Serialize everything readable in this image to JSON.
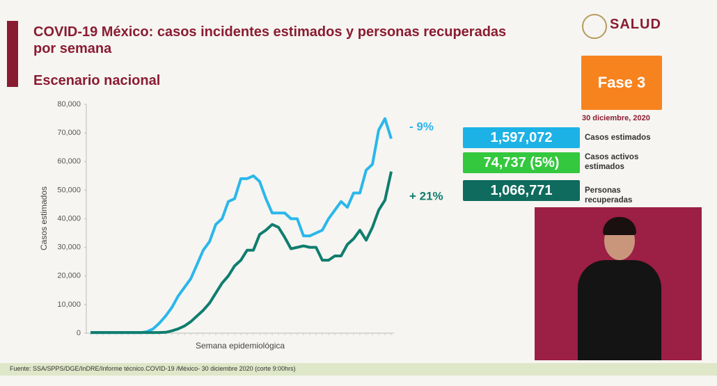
{
  "header": {
    "title": "COVID-19 México: casos incidentes estimados y personas recuperadas por semana",
    "subtitle": "Escenario nacional",
    "logo": "SALUD",
    "phase": "Fase 3",
    "date": "30 diciembre, 2020"
  },
  "stats": [
    {
      "value": "1,597,072",
      "label": "Casos estimados",
      "color": "#1db2e6"
    },
    {
      "value": "74,737 (5%)",
      "label": "Casos activos estimados",
      "color": "#34c83e"
    },
    {
      "value": "1,066,771",
      "label": "Personas recuperadas",
      "color": "#0f6b5d"
    }
  ],
  "footer": "Fuente: SSA/SPPS/DGE/InDRE/Informe técnico.COVID-19 /México- 30 diciembre 2020 (corte 9:00hrs)",
  "chart_data": {
    "type": "line",
    "x_label": "Semana epidemiológica",
    "y_label": "Casos estimados",
    "categories": [
      null,
      null,
      null,
      null,
      null,
      null,
      null,
      null,
      null,
      null,
      null,
      null,
      null,
      null,
      null,
      null,
      null,
      null,
      null,
      null,
      null,
      null,
      null,
      null,
      null,
      null,
      null,
      null,
      null,
      null,
      null,
      null,
      null,
      null,
      null,
      null,
      null,
      null,
      null,
      null,
      null,
      null,
      null,
      null,
      null,
      null,
      null,
      null,
      null
    ],
    "ylim": [
      0,
      80000
    ],
    "yticks": [
      0,
      {
        "value": 10000,
        "label": "10,000"
      },
      {
        "value": 20000,
        "label": "20,000"
      },
      {
        "value": 30000,
        "label": "30,000"
      },
      {
        "value": 40000,
        "label": "40,000"
      },
      {
        "value": 50000,
        "label": "50,000"
      },
      {
        "value": 60000,
        "label": "60,000"
      },
      {
        "value": 70000,
        "label": "70,000"
      },
      {
        "value": 80000,
        "label": "80,000"
      }
    ],
    "grid": false,
    "series": [
      {
        "color": "#2bb7ea",
        "values": [
          200,
          200,
          200,
          200,
          200,
          200,
          200,
          200,
          200,
          500,
          1500,
          3500,
          6000,
          9000,
          13000,
          16000,
          19000,
          24000,
          29000,
          32000,
          38000,
          40000,
          46000,
          47000,
          54000,
          54000,
          55000,
          53000,
          47000,
          42000,
          42000,
          42000,
          40000,
          40000,
          34000,
          34000,
          35000,
          36000,
          40000,
          43000,
          46000,
          44000,
          49000,
          49000,
          57000,
          59000,
          71000,
          75000,
          68000
        ]
      },
      {
        "color": "#0f7d6e",
        "values": [
          200,
          200,
          200,
          200,
          200,
          200,
          200,
          200,
          200,
          200,
          200,
          200,
          300,
          800,
          1500,
          2500,
          4000,
          6000,
          8000,
          10500,
          14000,
          17500,
          20000,
          23500,
          25500,
          29000,
          29000,
          34500,
          36000,
          38000,
          37000,
          33500,
          29500,
          30000,
          30500,
          30000,
          30000,
          25500,
          25500,
          27000,
          27000,
          31000,
          33000,
          36000,
          32500,
          37000,
          43000,
          46500,
          56500
        ]
      }
    ],
    "annotations": [
      {
        "text": "- 9%",
        "color": "#2bb7ea"
      },
      {
        "text": "+ 21%",
        "color": "#0f7d6e"
      }
    ]
  }
}
